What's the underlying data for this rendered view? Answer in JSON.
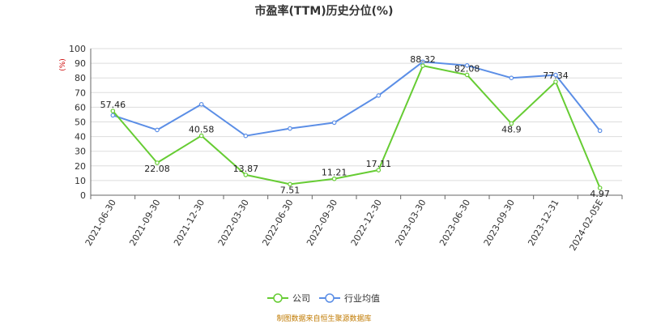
{
  "chart_data": {
    "type": "line",
    "title": "市盈率(TTM)历史分位(%)",
    "yunit": "(%)",
    "ylim": [
      0,
      100
    ],
    "yticks": [
      0,
      10,
      20,
      30,
      40,
      50,
      60,
      70,
      80,
      90,
      100
    ],
    "grid": true,
    "legend_position": "bottom-center",
    "categories": [
      "2021-06-30",
      "2021-09-30",
      "2021-12-30",
      "2022-03-30",
      "2022-06-30",
      "2022-09-30",
      "2022-12-30",
      "2023-03-30",
      "2023-06-30",
      "2023-09-30",
      "2023-12-31",
      "2024-02-05E"
    ],
    "series": [
      {
        "name": "公司",
        "color": "#66cc33",
        "values": [
          57.46,
          22.08,
          40.58,
          13.87,
          7.51,
          11.21,
          17.11,
          88.32,
          82.08,
          48.9,
          77.34,
          4.97
        ],
        "labels": [
          "57.46",
          "22.08",
          "40.58",
          "13.87",
          "7.51",
          "11.21",
          "17.11",
          "88.32",
          "82.08",
          "48.9",
          "77.34",
          "4.97"
        ]
      },
      {
        "name": "行业均值",
        "color": "#5b8ee6",
        "values": [
          54.5,
          44.5,
          62,
          40.5,
          45.5,
          49.5,
          68,
          91,
          88.5,
          80,
          82,
          44
        ]
      }
    ]
  },
  "source_text": "制图数据来自恒生聚源数据库"
}
